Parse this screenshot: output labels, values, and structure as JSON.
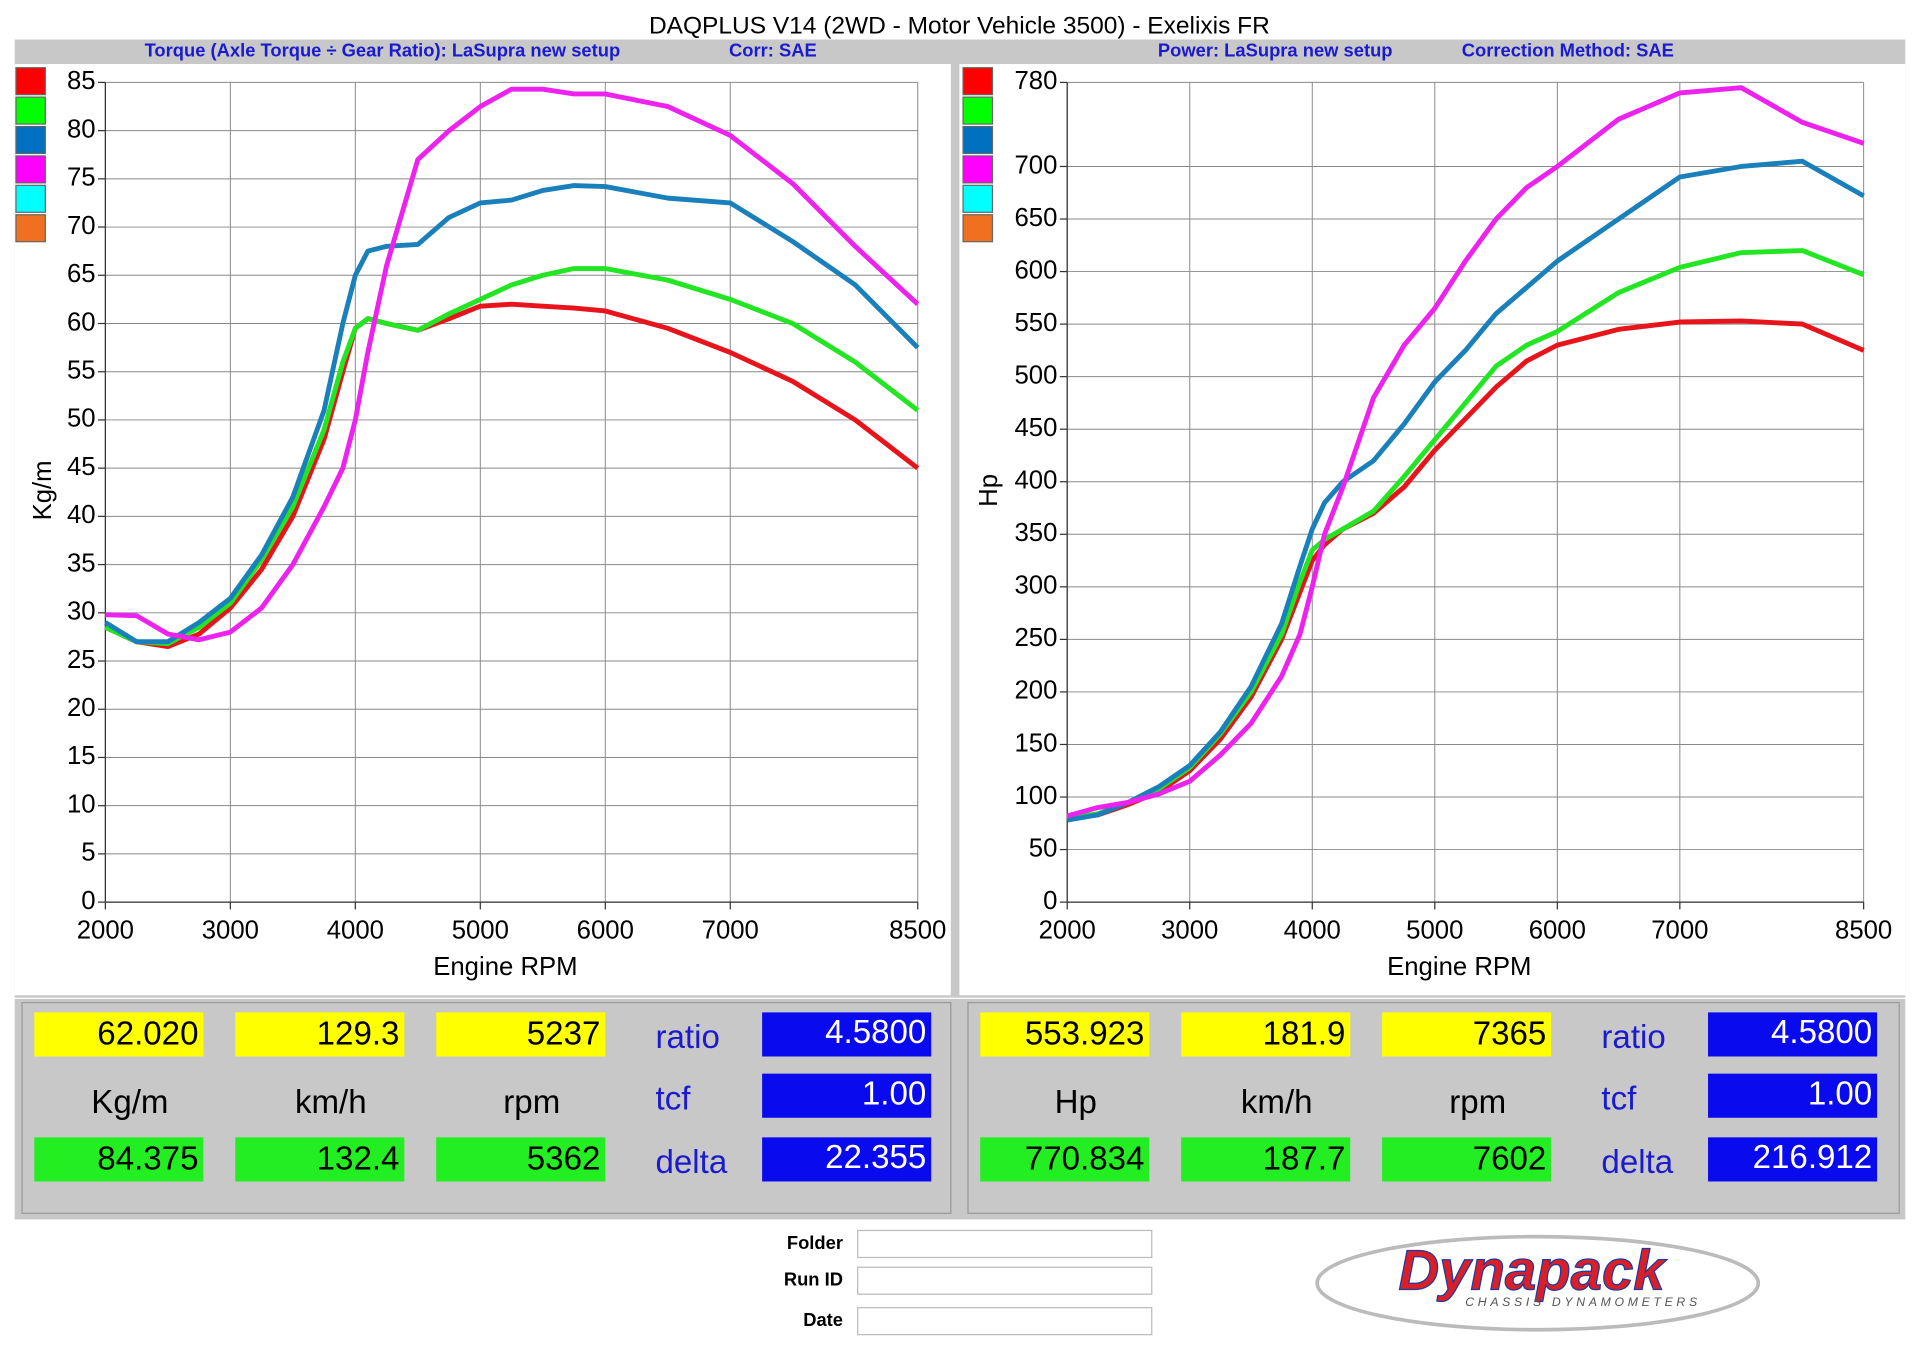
{
  "title": "DAQPLUS V14 (2WD - Motor Vehicle 3500) - Exelixis FR",
  "chart_data": [
    {
      "type": "line",
      "subtitle": "Torque (Axle Torque ÷ Gear Ratio): LaSupra new setup",
      "correction": "Corr: SAE",
      "xlabel": "Engine RPM",
      "ylabel": "Kg/m",
      "xlim": [
        2000,
        8500
      ],
      "ylim": [
        0,
        85
      ],
      "xticks": [
        2000,
        3000,
        4000,
        5000,
        6000,
        7000,
        8500
      ],
      "yticks": [
        0,
        5,
        10,
        15,
        20,
        25,
        30,
        35,
        40,
        45,
        50,
        55,
        60,
        65,
        70,
        75,
        80,
        85
      ],
      "grid": true,
      "legend_colors": [
        "#ff0000",
        "#00ff00",
        "#0070c0",
        "#ff00ff",
        "#00ffff",
        "#f07020"
      ],
      "x": [
        2000,
        2250,
        2500,
        2750,
        3000,
        3250,
        3500,
        3750,
        3900,
        4000,
        4100,
        4250,
        4500,
        4750,
        5000,
        5250,
        5500,
        5750,
        6000,
        6500,
        7000,
        7500,
        8000,
        8500
      ],
      "series": [
        {
          "color": "#e8141c",
          "values": [
            28.5,
            27,
            26.5,
            27.8,
            30.5,
            34.5,
            40,
            48,
            55,
            59.5,
            60.5,
            60,
            59.3,
            60.5,
            61.8,
            62,
            61.8,
            61.6,
            61.3,
            59.5,
            57,
            54,
            50,
            45
          ]
        },
        {
          "color": "#22e622",
          "values": [
            28.5,
            27,
            26.8,
            28.5,
            31,
            35.5,
            41,
            49,
            56,
            59.5,
            60.5,
            60,
            59.3,
            61,
            62.5,
            64,
            65,
            65.7,
            65.7,
            64.5,
            62.5,
            60,
            56,
            51
          ]
        },
        {
          "color": "#1a80bb",
          "values": [
            29,
            27,
            27,
            29,
            31.5,
            36,
            42,
            51,
            60,
            65,
            67.5,
            68,
            68.2,
            71,
            72.5,
            72.8,
            73.8,
            74.3,
            74.2,
            73,
            72.5,
            68.5,
            64,
            57.5
          ]
        },
        {
          "color": "#ee22ee",
          "values": [
            29.8,
            29.7,
            27.8,
            27.2,
            28,
            30.5,
            35,
            41,
            45,
            50,
            57,
            66,
            77,
            80,
            82.5,
            84.3,
            84.3,
            83.8,
            83.8,
            82.5,
            79.5,
            74.5,
            68,
            62
          ]
        }
      ]
    },
    {
      "type": "line",
      "subtitle": "Power: LaSupra new setup",
      "correction": "Correction Method: SAE",
      "xlabel": "Engine RPM",
      "ylabel": "Hp",
      "xlim": [
        2000,
        8500
      ],
      "ylim": [
        0,
        780
      ],
      "xticks": [
        2000,
        3000,
        4000,
        5000,
        6000,
        7000,
        8500
      ],
      "yticks": [
        0,
        50,
        100,
        150,
        200,
        250,
        300,
        350,
        400,
        450,
        500,
        550,
        600,
        650,
        700,
        780
      ],
      "grid": true,
      "legend_colors": [
        "#ff0000",
        "#00ff00",
        "#0070c0",
        "#ff00ff",
        "#00ffff",
        "#f07020"
      ],
      "x": [
        2000,
        2250,
        2500,
        2750,
        3000,
        3250,
        3500,
        3750,
        3900,
        4000,
        4100,
        4250,
        4500,
        4750,
        5000,
        5250,
        5500,
        5750,
        6000,
        6500,
        7000,
        7500,
        8000,
        8500
      ],
      "series": [
        {
          "color": "#e8141c",
          "values": [
            80,
            83,
            93,
            105,
            125,
            155,
            195,
            250,
            295,
            325,
            340,
            355,
            370,
            395,
            430,
            460,
            490,
            515,
            530,
            545,
            552,
            553,
            550,
            525
          ]
        },
        {
          "color": "#22e622",
          "values": [
            80,
            84,
            95,
            108,
            128,
            160,
            200,
            255,
            305,
            335,
            345,
            355,
            372,
            405,
            440,
            475,
            510,
            530,
            543,
            580,
            604,
            618,
            620,
            597
          ]
        },
        {
          "color": "#1a80bb",
          "values": [
            78,
            83,
            95,
            110,
            130,
            162,
            205,
            265,
            320,
            355,
            380,
            400,
            420,
            455,
            495,
            525,
            560,
            585,
            610,
            650,
            690,
            700,
            705,
            672
          ]
        },
        {
          "color": "#ee22ee",
          "values": [
            82,
            90,
            95,
            103,
            115,
            140,
            170,
            215,
            255,
            300,
            350,
            395,
            480,
            530,
            565,
            610,
            650,
            680,
            700,
            745,
            770,
            775,
            742,
            722
          ]
        }
      ]
    }
  ],
  "panels": [
    {
      "row1": [
        "62.020",
        "129.3",
        "5237"
      ],
      "units": [
        "Kg/m",
        "km/h",
        "rpm"
      ],
      "row2": [
        "84.375",
        "132.4",
        "5362"
      ],
      "labels": [
        "ratio",
        "tcf",
        "delta"
      ],
      "params": [
        "4.5800",
        "1.00",
        "22.355"
      ]
    },
    {
      "row1": [
        "553.923",
        "181.9",
        "7365"
      ],
      "units": [
        "Hp",
        "km/h",
        "rpm"
      ],
      "row2": [
        "770.834",
        "187.7",
        "7602"
      ],
      "labels": [
        "ratio",
        "tcf",
        "delta"
      ],
      "params": [
        "4.5800",
        "1.00",
        "216.912"
      ]
    }
  ],
  "footer": {
    "fields": [
      "Folder",
      "Run ID",
      "Date"
    ],
    "logo": "Dynapack",
    "logo_sub": "CHASSIS DYNAMOMETERS"
  }
}
